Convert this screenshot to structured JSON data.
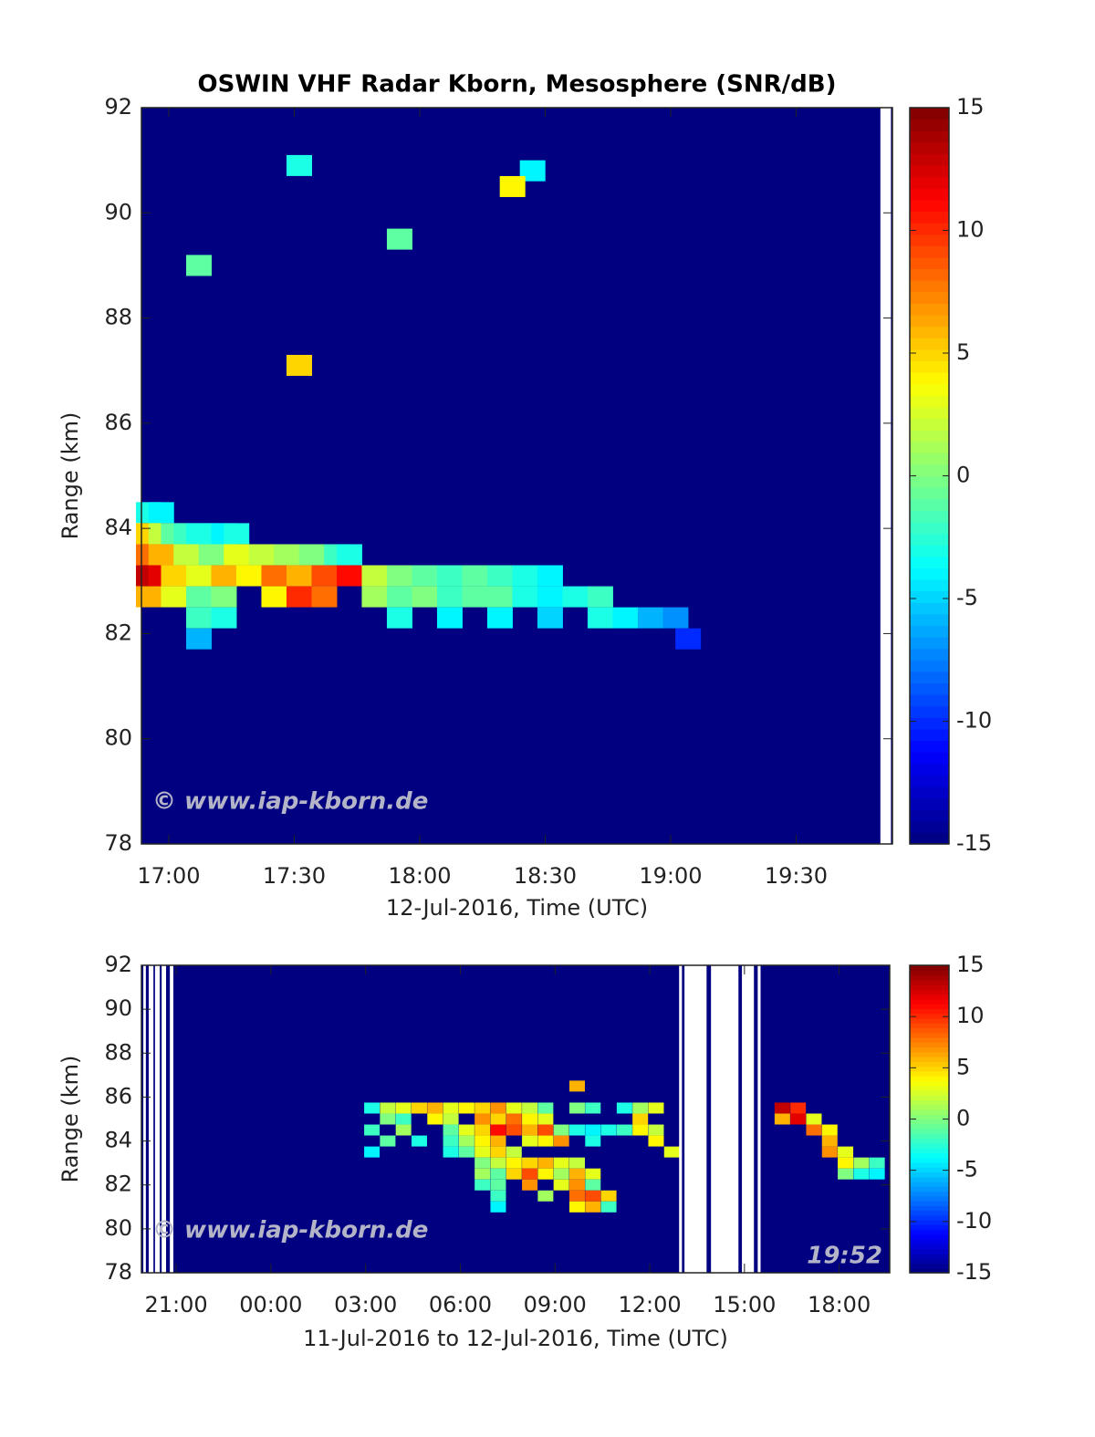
{
  "chart_data": [
    {
      "type": "heatmap",
      "title": "OSWIN VHF Radar Kborn, Mesosphere (SNR/dB)",
      "xlabel": "12-Jul-2016, Time (UTC)",
      "ylabel": "Range (km)",
      "xlim": [
        16.891,
        19.884
      ],
      "xticks": [
        {
          "value": 17,
          "label": "17:00"
        },
        {
          "value": 17.5,
          "label": "17:30"
        },
        {
          "value": 18,
          "label": "18:00"
        },
        {
          "value": 18.5,
          "label": "18:30"
        },
        {
          "value": 19,
          "label": "19:00"
        },
        {
          "value": 19.5,
          "label": "19:30"
        }
      ],
      "ylim": [
        78,
        92
      ],
      "yticks": [
        78,
        80,
        82,
        84,
        86,
        88,
        90,
        92
      ],
      "clim": [
        -15,
        15
      ],
      "cticks": [
        -15,
        -10,
        -5,
        0,
        5,
        10,
        15
      ],
      "colormap": "jet",
      "no_data": [
        [
          19.836,
          19.878
        ]
      ],
      "watermark": "© www.iap-kborn.de",
      "x": [
        16.92,
        16.97,
        16.92,
        16.97,
        17.02,
        17.07,
        17.12,
        17.17,
        17.22,
        17.27,
        16.92,
        16.97,
        17.07,
        17.17,
        17.27,
        17.37,
        17.47,
        17.57,
        17.67,
        17.72,
        16.92,
        16.97,
        17.02,
        17.12,
        17.22,
        17.32,
        17.42,
        17.52,
        17.62,
        17.72,
        17.82,
        17.92,
        18.02,
        18.12,
        18.22,
        18.32,
        18.42,
        18.52,
        16.92,
        17.02,
        17.12,
        17.22,
        17.42,
        17.52,
        17.62,
        17.82,
        17.92,
        18.02,
        18.12,
        18.22,
        18.32,
        18.42,
        18.52,
        18.62,
        18.72,
        17.12,
        17.22,
        17.92,
        18.12,
        18.32,
        18.52,
        18.72,
        18.82,
        18.92,
        19.02,
        17.12,
        19.07,
        17.52,
        18.45,
        17.92,
        17.12,
        17.52,
        18.37
      ],
      "y": [
        84.3,
        84.3,
        83.9,
        83.9,
        83.9,
        83.9,
        83.9,
        83.9,
        83.9,
        83.9,
        83.5,
        83.5,
        83.5,
        83.5,
        83.5,
        83.5,
        83.5,
        83.5,
        83.5,
        83.5,
        83.1,
        83.1,
        83.1,
        83.1,
        83.1,
        83.1,
        83.1,
        83.1,
        83.1,
        83.1,
        83.1,
        83.1,
        83.1,
        83.1,
        83.1,
        83.1,
        83.1,
        83.1,
        82.7,
        82.7,
        82.7,
        82.7,
        82.7,
        82.7,
        82.7,
        82.7,
        82.7,
        82.7,
        82.7,
        82.7,
        82.7,
        82.7,
        82.7,
        82.7,
        82.7,
        82.3,
        82.3,
        82.3,
        82.3,
        82.3,
        82.3,
        82.3,
        82.3,
        82.3,
        82.3,
        81.9,
        81.9,
        90.9,
        90.8,
        89.5,
        89,
        87.1,
        90.5
      ],
      "values": [
        -3,
        -4,
        5,
        2,
        -1,
        -2,
        -3,
        -3,
        -4,
        -3,
        8,
        6,
        2,
        0,
        3,
        2,
        1,
        0,
        -2,
        -3,
        13,
        12,
        5,
        3,
        6,
        4,
        8,
        6,
        9,
        11,
        2,
        0,
        -1,
        -2,
        -1,
        -2,
        -3,
        -4,
        6,
        3,
        -1,
        0,
        4,
        10,
        8,
        1,
        -1,
        0,
        -2,
        -1,
        -1,
        -3,
        -4,
        -3,
        -2,
        -2,
        -3,
        -3,
        -4,
        -4,
        -5,
        -3,
        -4,
        -6,
        -7,
        -6,
        -10,
        -3,
        -4,
        -1,
        -1,
        5,
        4
      ]
    },
    {
      "type": "heatmap",
      "xlabel": "11-Jul-2016 to 12-Jul-2016, Time (UTC)",
      "ylabel": "Range (km)",
      "xlim": [
        19.9,
        43.6
      ],
      "xticks": [
        {
          "value": 21,
          "label": "21:00"
        },
        {
          "value": 24,
          "label": "00:00"
        },
        {
          "value": 27,
          "label": "03:00"
        },
        {
          "value": 30,
          "label": "06:00"
        },
        {
          "value": 33,
          "label": "09:00"
        },
        {
          "value": 36,
          "label": "12:00"
        },
        {
          "value": 39,
          "label": "15:00"
        },
        {
          "value": 42,
          "label": "18:00"
        }
      ],
      "ylim": [
        78,
        92
      ],
      "yticks": [
        78,
        80,
        82,
        84,
        86,
        88,
        90,
        92
      ],
      "clim": [
        -15,
        15
      ],
      "cticks": [
        -15,
        -10,
        -5,
        0,
        5,
        10,
        15
      ],
      "colormap": "jet",
      "no_data": [
        [
          19.96,
          20.04
        ],
        [
          20.13,
          20.28
        ],
        [
          20.33,
          20.48
        ],
        [
          20.54,
          20.68
        ],
        [
          20.8,
          20.91
        ],
        [
          36.93,
          37.02
        ],
        [
          37.1,
          37.8
        ],
        [
          37.94,
          38.81
        ],
        [
          38.92,
          39.3
        ],
        [
          39.42,
          39.51
        ]
      ],
      "watermark": "© www.iap-kborn.de",
      "timestamp": "19:52",
      "x": [
        27.2,
        27.7,
        28.2,
        28.7,
        29.2,
        29.7,
        30.2,
        30.7,
        31.2,
        31.7,
        32.2,
        32.7,
        33.7,
        34.2,
        35.2,
        35.7,
        36.2,
        40.2,
        40.7,
        27.7,
        28.2,
        29.2,
        29.7,
        30.7,
        31.2,
        31.7,
        32.2,
        32.7,
        35.7,
        40.2,
        40.7,
        41.2,
        27.2,
        28.2,
        29.7,
        30.2,
        30.7,
        31.2,
        31.7,
        32.2,
        32.7,
        33.2,
        33.7,
        34.2,
        34.7,
        35.2,
        35.7,
        36.2,
        41.2,
        41.7,
        27.7,
        28.7,
        29.7,
        30.2,
        30.7,
        31.2,
        32.2,
        32.7,
        33.2,
        34.2,
        36.2,
        41.7,
        27.2,
        29.7,
        30.2,
        30.7,
        31.2,
        31.7,
        36.7,
        41.7,
        42.2,
        30.7,
        31.2,
        31.7,
        32.2,
        32.7,
        33.2,
        33.7,
        42.2,
        42.7,
        43.2,
        30.7,
        31.2,
        31.7,
        32.2,
        32.7,
        33.2,
        33.7,
        34.2,
        42.2,
        42.7,
        43.2,
        30.7,
        31.2,
        32.2,
        33.2,
        33.7,
        34.2,
        31.2,
        32.7,
        33.7,
        34.2,
        34.7,
        31.2,
        33.7,
        34.2,
        34.7,
        33.7
      ],
      "y": [
        85.5,
        85.5,
        85.5,
        85.5,
        85.5,
        85.5,
        85.5,
        85.5,
        85.5,
        85.5,
        85.5,
        85.5,
        85.5,
        85.5,
        85.5,
        85.5,
        85.5,
        85.5,
        85.5,
        85,
        85,
        85,
        85,
        85,
        85,
        85,
        85,
        85,
        85,
        85,
        85,
        85,
        84.5,
        84.5,
        84.5,
        84.5,
        84.5,
        84.5,
        84.5,
        84.5,
        84.5,
        84.5,
        84.5,
        84.5,
        84.5,
        84.5,
        84.5,
        84.5,
        84.5,
        84.5,
        84,
        84,
        84,
        84,
        84,
        84,
        84,
        84,
        84,
        84,
        84,
        84,
        83.5,
        83.5,
        83.5,
        83.5,
        83.5,
        83.5,
        83.5,
        83.5,
        83.5,
        83,
        83,
        83,
        83,
        83,
        83,
        83,
        83,
        83,
        83,
        82.5,
        82.5,
        82.5,
        82.5,
        82.5,
        82.5,
        82.5,
        82.5,
        82.5,
        82.5,
        82.5,
        82,
        82,
        82,
        82,
        82,
        82,
        81.5,
        81.5,
        81.5,
        81.5,
        81.5,
        81,
        81,
        81,
        81,
        86.5
      ],
      "values": [
        -3,
        2,
        3,
        5,
        6,
        3,
        4,
        5,
        7,
        3,
        2,
        -1,
        0,
        -2,
        -3,
        1,
        3,
        13,
        10,
        0,
        -2,
        4,
        2,
        7,
        5,
        8,
        4,
        3,
        5,
        6,
        12,
        3,
        -2,
        1,
        -1,
        3,
        5,
        11,
        9,
        6,
        9,
        0,
        -3,
        -4,
        -3,
        -2,
        4,
        2,
        8,
        4,
        -1,
        -3,
        -2,
        1,
        4,
        6,
        3,
        4,
        7,
        -3,
        4,
        6,
        -4,
        -3,
        -1,
        3,
        5,
        2,
        3,
        7,
        3,
        0,
        2,
        4,
        5,
        6,
        3,
        2,
        4,
        1,
        -2,
        1,
        -1,
        5,
        9,
        4,
        1,
        6,
        3,
        0,
        -3,
        -4,
        -2,
        -1,
        7,
        3,
        7,
        -1,
        -2,
        1,
        8,
        9,
        5,
        -4,
        4,
        6,
        -2,
        6
      ]
    }
  ]
}
